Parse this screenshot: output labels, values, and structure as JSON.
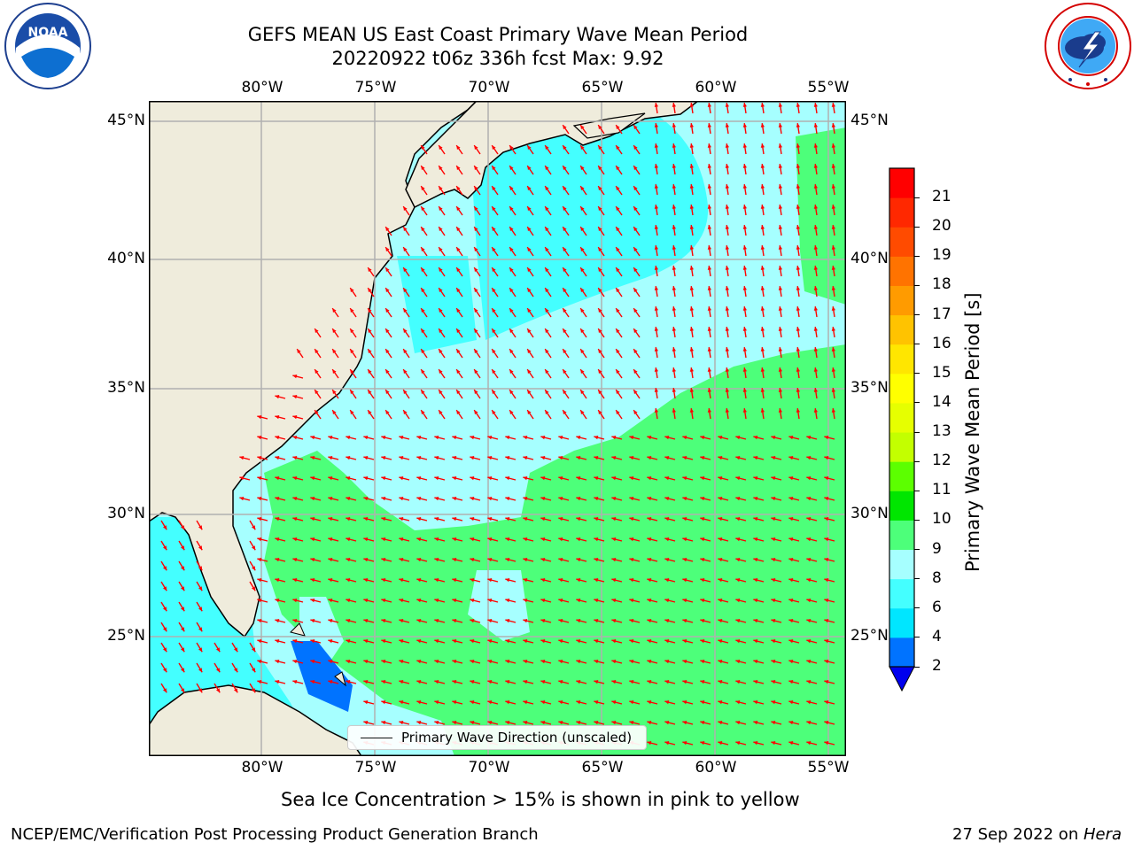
{
  "header": {
    "title_line1": "GEFS MEAN US East Coast Primary Wave Mean Period",
    "title_line2": "20220922 t06z 336h fcst   Max: 9.92"
  },
  "logos": {
    "left": {
      "name": "NOAA",
      "icon": "noaa-logo",
      "ring_text": "NATIONAL OCEANIC AND ATMOSPHERIC ADMINISTRATION · U.S. DEPARTMENT OF COMMERCE"
    },
    "right": {
      "name": "National Weather Service",
      "icon": "nws-logo",
      "ring_text": "NATIONAL WEATHER SERVICE"
    }
  },
  "map": {
    "lon_labels": [
      "80°W",
      "75°W",
      "70°W",
      "65°W",
      "60°W",
      "55°W"
    ],
    "lat_labels": [
      "45°N",
      "40°N",
      "35°N",
      "30°N",
      "25°N"
    ],
    "legend_label": "Primary Wave Direction (unscaled)",
    "colors": {
      "land": "#efecdc",
      "coast": "#000000",
      "grid": "#b0b0b0",
      "arrow": "#ff0000"
    }
  },
  "colorbar": {
    "label": "Primary Wave Mean Period [s]",
    "ticks": [
      "2",
      "4",
      "6",
      "8",
      "9",
      "10",
      "11",
      "12",
      "13",
      "14",
      "15",
      "16",
      "17",
      "18",
      "19",
      "20",
      "21"
    ],
    "colors": [
      "#0000ee",
      "#0073ff",
      "#00e6ff",
      "#44ffff",
      "#a6ffff",
      "#4dff7a",
      "#00e600",
      "#5cff00",
      "#c3ff00",
      "#e6ff00",
      "#ffff00",
      "#ffe600",
      "#ffc300",
      "#ff9b00",
      "#ff7300",
      "#ff4b00",
      "#ff2800",
      "#ff0000"
    ],
    "extend": "min"
  },
  "footer": {
    "note": "Sea Ice Concentration > 15% is shown in pink to yellow",
    "left": "NCEP/EMC/Verification Post Processing Product Generation Branch",
    "date": "27 Sep 2022 on ",
    "machine": "Hera"
  }
}
